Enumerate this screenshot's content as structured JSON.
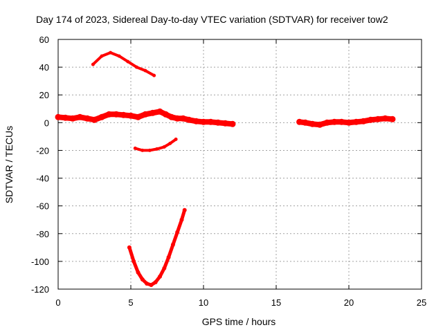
{
  "chart_data": {
    "type": "scatter",
    "title": "Day 174 of 2023, Sidereal Day-to-day VTEC variation (SDTVAR) for receiver tow2",
    "xlabel": "GPS time / hours",
    "ylabel": "SDTVAR / TECUs",
    "xlim": [
      0,
      25
    ],
    "ylim": [
      -120,
      60
    ],
    "xticks": [
      0,
      5,
      10,
      15,
      20,
      25
    ],
    "yticks": [
      -120,
      -100,
      -80,
      -60,
      -40,
      -20,
      0,
      20,
      40,
      60
    ],
    "grid": true,
    "color": "#ff0000",
    "series": [
      {
        "name": "segment-main-near-zero",
        "thickness": 8,
        "points": [
          [
            0,
            4
          ],
          [
            0.5,
            3.5
          ],
          [
            1,
            3
          ],
          [
            1.5,
            4
          ],
          [
            2,
            3
          ],
          [
            2.5,
            2
          ],
          [
            3,
            4
          ],
          [
            3.5,
            6
          ],
          [
            4,
            6
          ],
          [
            4.5,
            5.5
          ],
          [
            5,
            5
          ],
          [
            5.5,
            4
          ],
          [
            6,
            6
          ],
          [
            6.5,
            7
          ],
          [
            7,
            8
          ],
          [
            7.4,
            6
          ],
          [
            7.8,
            4
          ],
          [
            8.2,
            3
          ],
          [
            8.6,
            3
          ],
          [
            9,
            2
          ],
          [
            9.5,
            1
          ],
          [
            10,
            0.5
          ],
          [
            10.5,
            0.5
          ],
          [
            11,
            0
          ],
          [
            11.5,
            -0.5
          ],
          [
            12,
            -1
          ]
        ]
      },
      {
        "name": "segment-late-near-zero",
        "thickness": 8,
        "points": [
          [
            16.6,
            0.5
          ],
          [
            17,
            0
          ],
          [
            17.5,
            -1
          ],
          [
            18,
            -1.5
          ],
          [
            18.5,
            0
          ],
          [
            19,
            0.5
          ],
          [
            19.5,
            0.5
          ],
          [
            20,
            0
          ],
          [
            20.5,
            0.5
          ],
          [
            21,
            1
          ],
          [
            21.5,
            2
          ],
          [
            22,
            2.5
          ],
          [
            22.5,
            3
          ],
          [
            23,
            2.5
          ]
        ]
      },
      {
        "name": "segment-upper-arc",
        "thickness": 4,
        "points": [
          [
            2.4,
            42
          ],
          [
            3,
            48
          ],
          [
            3.6,
            50.5
          ],
          [
            4.2,
            48
          ],
          [
            4.8,
            44
          ],
          [
            5.4,
            40
          ],
          [
            6,
            37.5
          ],
          [
            6.6,
            34
          ]
        ]
      },
      {
        "name": "segment-minus-twenty",
        "thickness": 4,
        "points": [
          [
            5.3,
            -18.5
          ],
          [
            5.8,
            -20
          ],
          [
            6.3,
            -20
          ],
          [
            6.8,
            -19
          ],
          [
            7.3,
            -17.5
          ],
          [
            7.7,
            -15
          ],
          [
            8.1,
            -12
          ]
        ]
      },
      {
        "name": "segment-deep-dip",
        "thickness": 5,
        "points": [
          [
            4.9,
            -90
          ],
          [
            5.2,
            -100
          ],
          [
            5.5,
            -108
          ],
          [
            5.8,
            -113
          ],
          [
            6.1,
            -116
          ],
          [
            6.4,
            -117
          ],
          [
            6.7,
            -115
          ],
          [
            7,
            -111
          ],
          [
            7.3,
            -105
          ],
          [
            7.6,
            -97
          ],
          [
            7.9,
            -88
          ],
          [
            8.2,
            -79
          ],
          [
            8.5,
            -70
          ],
          [
            8.7,
            -63
          ]
        ]
      }
    ]
  }
}
